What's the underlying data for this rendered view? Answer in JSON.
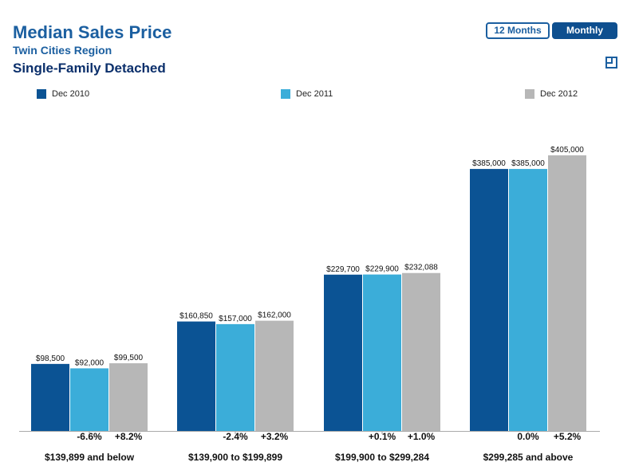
{
  "header": {
    "title": "Median Sales Price",
    "subtitle": "Twin Cities Region",
    "section": "Single-Family Detached"
  },
  "toggles": {
    "twelve_months": "12 Months",
    "monthly": "Monthly"
  },
  "icons": {
    "expand": "expand-icon"
  },
  "colors": {
    "series": [
      "#0b5394",
      "#3badd9",
      "#b7b7b7"
    ],
    "title": "#1b5fa0"
  },
  "chart_data": {
    "type": "bar",
    "title": "Median Sales Price",
    "subtitle": "Twin Cities Region",
    "categories": [
      "$139,899 and below",
      "$139,900 to $199,899",
      "$199,900 to $299,284",
      "$299,285 and above"
    ],
    "series": [
      {
        "name": "Dec 2010",
        "values": [
          98500,
          160850,
          229700,
          385000
        ],
        "labels": [
          "$98,500",
          "$160,850",
          "$229,700",
          "$385,000"
        ]
      },
      {
        "name": "Dec 2011",
        "values": [
          92000,
          157000,
          229900,
          385000
        ],
        "labels": [
          "$92,000",
          "$157,000",
          "$229,900",
          "$385,000"
        ]
      },
      {
        "name": "Dec 2012",
        "values": [
          99500,
          162000,
          232088,
          405000
        ],
        "labels": [
          "$99,500",
          "$162,000",
          "$232,088",
          "$405,000"
        ]
      }
    ],
    "changes": [
      [
        "-6.6%",
        "+8.2%"
      ],
      [
        "-2.4%",
        "+3.2%"
      ],
      [
        "+0.1%",
        "+1.0%"
      ],
      [
        "0.0%",
        "+5.2%"
      ]
    ],
    "ylim": [
      0,
      405000
    ],
    "grid": false,
    "legend": "top"
  }
}
